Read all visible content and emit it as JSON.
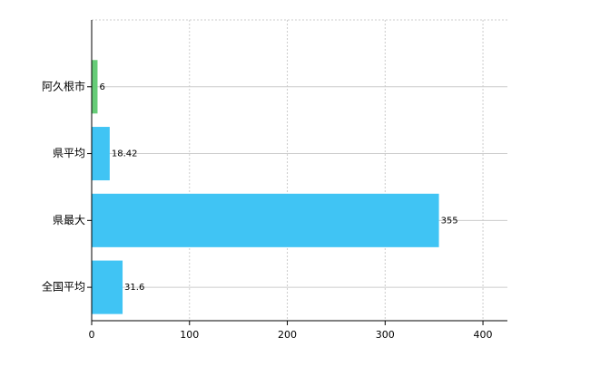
{
  "chart_data": {
    "type": "barh",
    "categories": [
      "阿久根市",
      "県平均",
      "県最大",
      "全国平均"
    ],
    "values": [
      6,
      18.42,
      355,
      31.6
    ],
    "colors": [
      "#66cc77",
      "#40c4f4",
      "#40c4f4",
      "#40c4f4"
    ],
    "xlim": [
      0,
      425
    ],
    "xticks": [
      0,
      100,
      200,
      300,
      400
    ],
    "grid": true
  }
}
